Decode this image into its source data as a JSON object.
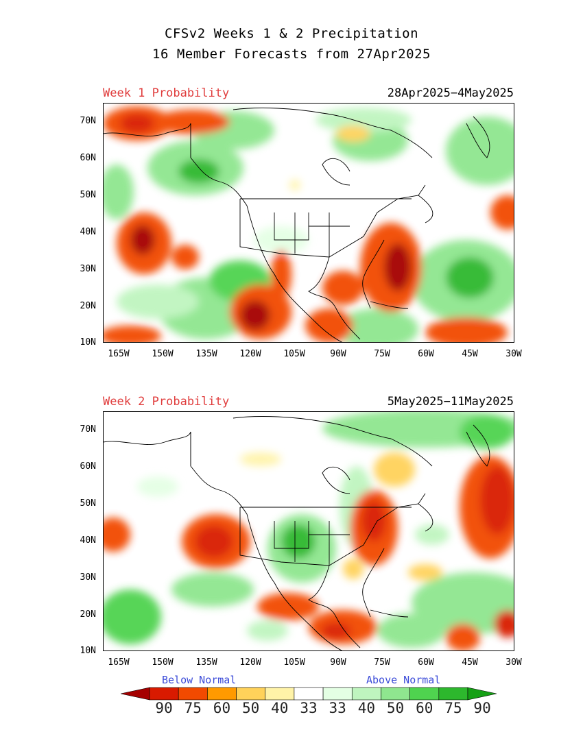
{
  "header": {
    "title_line1": "CFSv2 Weeks 1 & 2 Precipitation",
    "title_line2": "16 Member Forecasts from 27Apr2025"
  },
  "panels": [
    {
      "label": "Week 1 Probability",
      "dates": "28Apr2025−4May2025"
    },
    {
      "label": "Week 2 Probability",
      "dates": "5May2025−11May2025"
    }
  ],
  "axes": {
    "lat_labels": [
      "70N",
      "60N",
      "50N",
      "40N",
      "30N",
      "20N",
      "10N"
    ],
    "lon_labels": [
      "165W",
      "150W",
      "135W",
      "120W",
      "105W",
      "90W",
      "75W",
      "60W",
      "45W",
      "30W"
    ]
  },
  "legend": {
    "below_label": "Below Normal",
    "above_label": "Above Normal",
    "values": [
      "90",
      "75",
      "60",
      "50",
      "40",
      "33",
      "33",
      "40",
      "50",
      "60",
      "75",
      "90"
    ],
    "colors": [
      "#a50000",
      "#d91a00",
      "#f24a00",
      "#ff9a00",
      "#ffd25a",
      "#fff3a8",
      "#ffffff",
      "#e4ffe4",
      "#bff5bf",
      "#8fe68f",
      "#4fd34f",
      "#2db82d",
      "#15a015"
    ]
  }
}
